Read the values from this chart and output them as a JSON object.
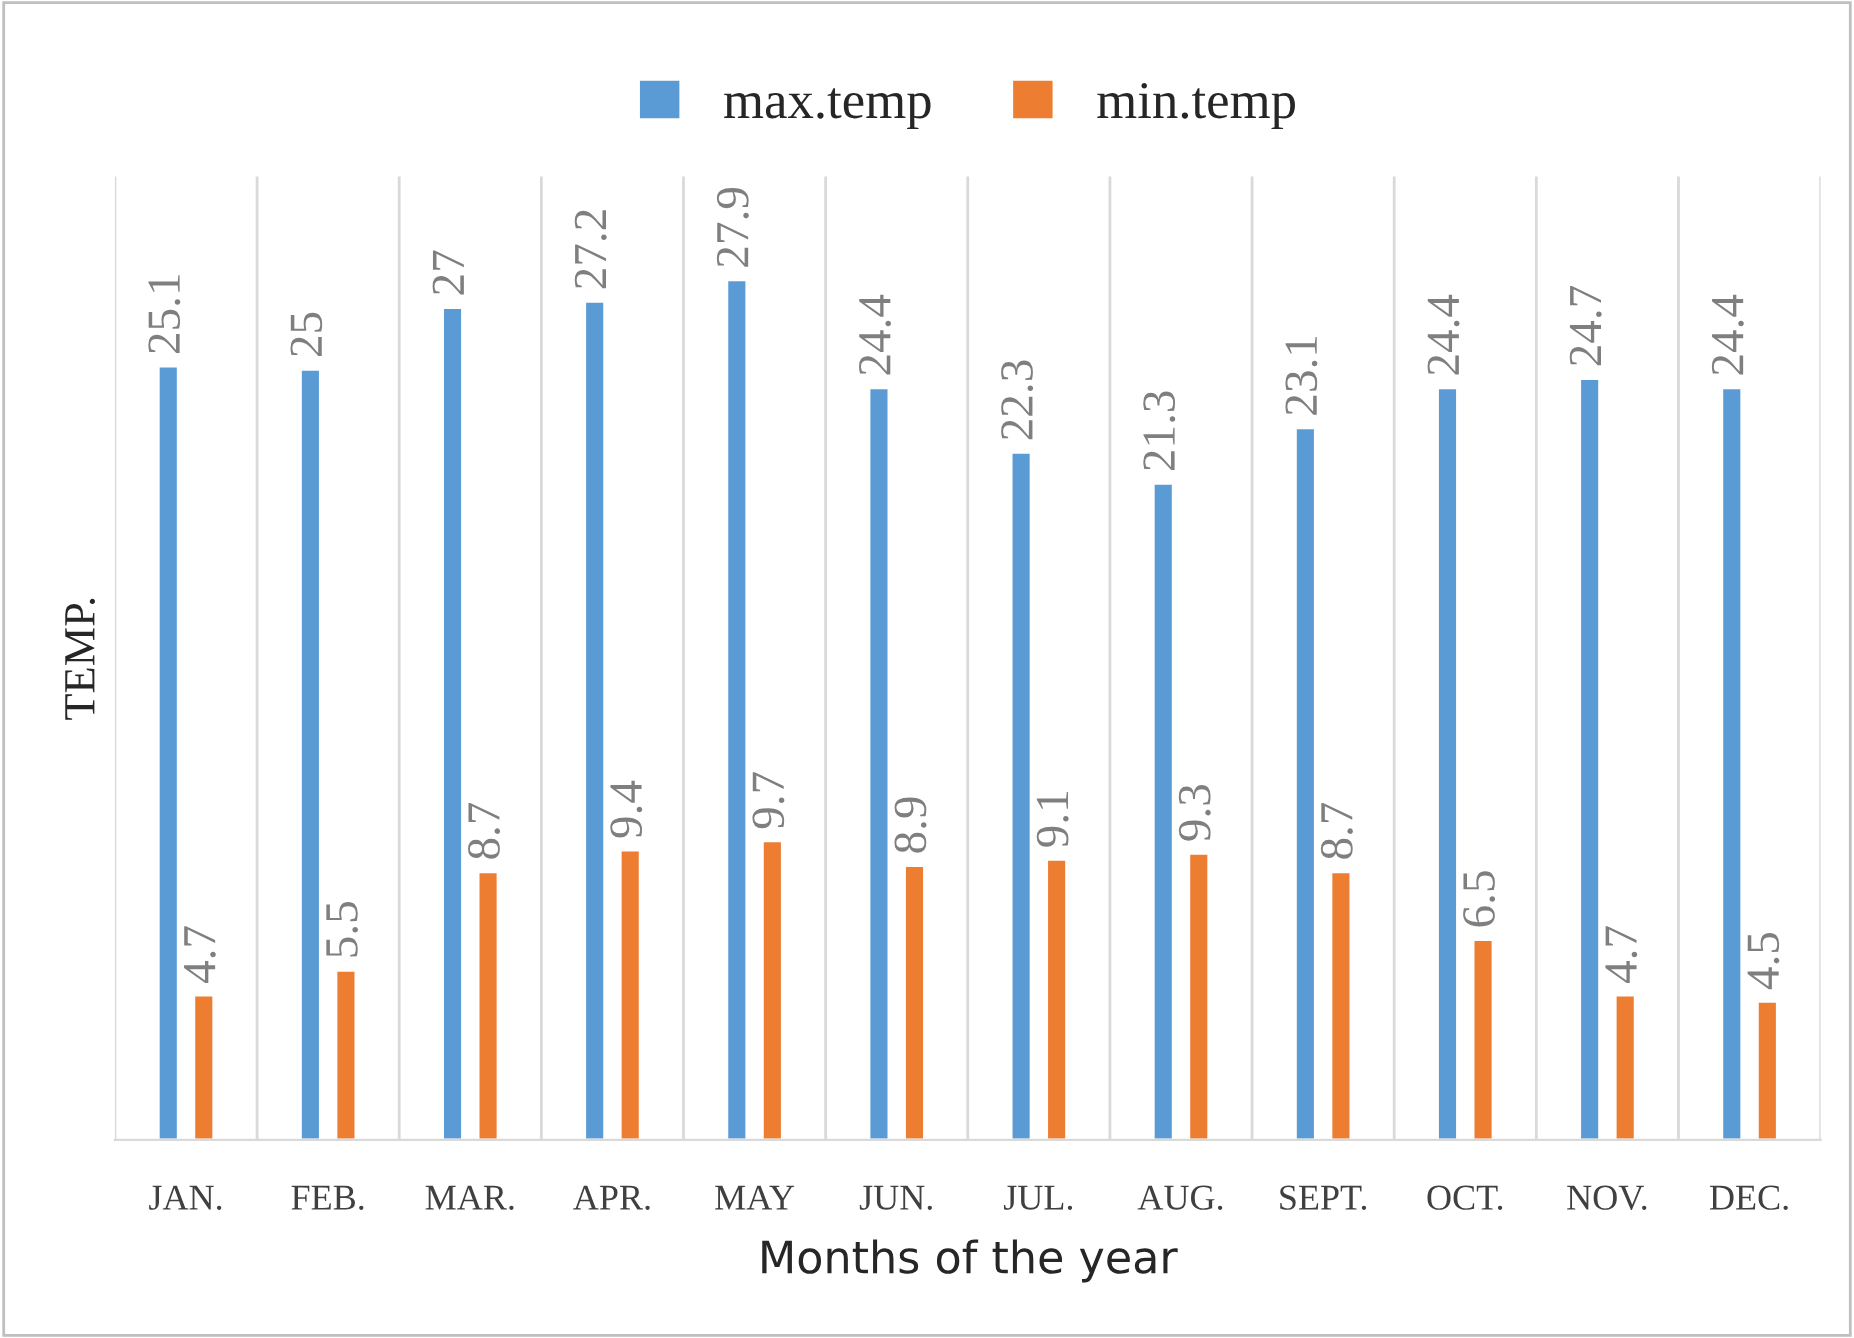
{
  "chart_data": {
    "type": "bar",
    "xlabel": "Months of the year",
    "ylabel": "TEMP.",
    "categories": [
      "JAN.",
      "FEB.",
      "MAR.",
      "APR.",
      "MAY",
      "JUN.",
      "JUL.",
      "AUG.",
      "SEPT.",
      "OCT.",
      "NOV.",
      "DEC."
    ],
    "series": [
      {
        "name": "max.temp",
        "color": "#5b9bd5",
        "values": [
          25.1,
          25,
          27,
          27.2,
          27.9,
          24.4,
          22.3,
          21.3,
          23.1,
          24.4,
          24.7,
          24.4
        ]
      },
      {
        "name": "min.temp",
        "color": "#ed7d31",
        "values": [
          4.7,
          5.5,
          8.7,
          9.4,
          9.7,
          8.9,
          9.1,
          9.3,
          8.7,
          6.5,
          4.7,
          4.5
        ]
      }
    ],
    "data_labels": true,
    "grid": "x",
    "legend": "top"
  }
}
